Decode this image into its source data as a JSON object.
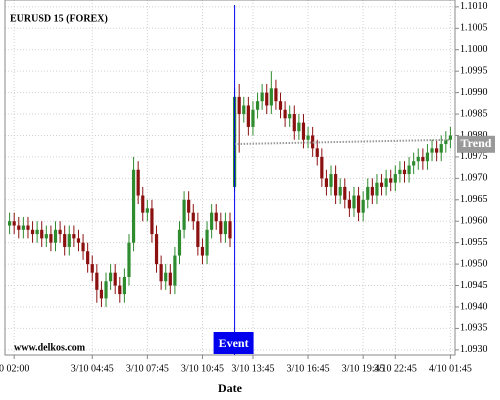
{
  "chart_data": {
    "type": "candlestick",
    "title": "EURUSD 15 (FOREX)",
    "watermark": "www.delkos.com",
    "x_label": "Date",
    "up_color": "#2e8b2e",
    "down_color": "#8b1010",
    "grid": true,
    "xlim": [
      -1,
      97
    ],
    "xticks": [
      {
        "value": 1,
        "label": "0 02:00"
      },
      {
        "value": 18,
        "label": "3/10 04:45"
      },
      {
        "value": 30,
        "label": "3/10 07:45"
      },
      {
        "value": 42,
        "label": "3/10 10:45"
      },
      {
        "value": 53,
        "label": "3/10 13:45"
      },
      {
        "value": 65,
        "label": "3/10 16:45"
      },
      {
        "value": 77,
        "label": "3/10 19:45"
      },
      {
        "value": 84,
        "label": "3/10 22:45"
      },
      {
        "value": 96,
        "label": "4/10 01:45"
      }
    ],
    "ylim": [
      1.09288,
      1.10116
    ],
    "yticks": [
      {
        "value": 1.093,
        "label": "1.0930"
      },
      {
        "value": 1.0935,
        "label": "1.0935"
      },
      {
        "value": 1.094,
        "label": "1.0940"
      },
      {
        "value": 1.0945,
        "label": "1.0945"
      },
      {
        "value": 1.095,
        "label": "1.0950"
      },
      {
        "value": 1.0955,
        "label": "1.0955"
      },
      {
        "value": 1.096,
        "label": "1.0960"
      },
      {
        "value": 1.0965,
        "label": "1.0965"
      },
      {
        "value": 1.097,
        "label": "1.0970"
      },
      {
        "value": 1.0975,
        "label": "1.0975"
      },
      {
        "value": 1.098,
        "label": "1.0980"
      },
      {
        "value": 1.0985,
        "label": "1.0985"
      },
      {
        "value": 1.099,
        "label": "1.0990"
      },
      {
        "value": 1.0995,
        "label": "1.0995"
      },
      {
        "value": 1.1,
        "label": "1.1000"
      },
      {
        "value": 1.1005,
        "label": "1.1005"
      },
      {
        "value": 1.101,
        "label": "1.1010"
      }
    ],
    "open": [
      1.0959,
      1.096,
      1.0959,
      1.0958,
      1.0959,
      1.0958,
      1.0957,
      1.0958,
      1.0956,
      1.0957,
      1.0955,
      1.0958,
      1.0957,
      1.0954,
      1.0957,
      1.0956,
      1.0955,
      1.0953,
      1.095,
      1.0948,
      1.0944,
      1.0942,
      1.0946,
      1.0948,
      1.0945,
      1.0943,
      1.0947,
      1.0955,
      1.0972,
      1.0966,
      1.0962,
      1.0963,
      1.0957,
      1.095,
      1.0946,
      1.0948,
      1.0945,
      1.0952,
      1.0958,
      1.0965,
      1.0962,
      1.096,
      1.0954,
      1.0952,
      1.0958,
      1.0962,
      1.096,
      1.0957,
      1.096,
      1.0968,
      1.0989,
      1.0985,
      1.0987,
      1.0982,
      1.0986,
      1.0988,
      1.099,
      1.0987,
      1.0991,
      1.0988,
      1.0986,
      1.0984,
      1.0985,
      1.0981,
      1.0983,
      1.0979,
      1.098,
      1.0977,
      1.0975,
      1.097,
      1.0968,
      1.0971,
      1.0966,
      1.0968,
      1.0965,
      1.0963,
      1.0966,
      1.0962,
      1.0965,
      1.0968,
      1.0966,
      1.0969,
      1.0968,
      1.097,
      1.0969,
      1.0971,
      1.0972,
      1.0971,
      1.0973,
      1.0974,
      1.0975,
      1.0974,
      1.0976,
      1.0977,
      1.0976,
      1.0978,
      1.0979
    ],
    "high": [
      1.0962,
      1.0962,
      1.0961,
      1.0961,
      1.0961,
      1.096,
      1.096,
      1.096,
      1.0959,
      1.0959,
      1.096,
      1.096,
      1.0959,
      1.0959,
      1.0959,
      1.0958,
      1.0957,
      1.0955,
      1.0952,
      1.095,
      1.0946,
      1.0948,
      1.095,
      1.095,
      1.0947,
      1.0949,
      1.0957,
      1.0975,
      1.0974,
      1.0968,
      1.0965,
      1.0965,
      1.0959,
      1.0952,
      1.095,
      1.095,
      1.0954,
      1.096,
      1.0967,
      1.0967,
      1.0964,
      1.0962,
      1.0956,
      1.096,
      1.0964,
      1.0964,
      1.0962,
      1.0962,
      1.0962,
      1.0991,
      1.0992,
      1.0989,
      1.0989,
      1.0988,
      1.099,
      1.0992,
      1.0992,
      1.0995,
      1.0993,
      1.099,
      1.0988,
      1.0987,
      1.0987,
      1.0985,
      1.0985,
      1.0982,
      1.0982,
      1.0979,
      1.0977,
      1.0972,
      1.0973,
      1.0973,
      1.097,
      1.097,
      1.0967,
      1.0968,
      1.0968,
      1.0967,
      1.097,
      1.097,
      1.0971,
      1.0971,
      1.0972,
      1.0972,
      1.0973,
      1.0974,
      1.0974,
      1.0975,
      1.0976,
      1.0977,
      1.0977,
      1.0978,
      1.0979,
      1.0979,
      1.098,
      1.0981,
      1.0982
    ],
    "low": [
      1.0957,
      1.0957,
      1.0956,
      1.0956,
      1.0956,
      1.0955,
      1.0955,
      1.0954,
      1.0954,
      1.0953,
      1.0953,
      1.0955,
      1.0952,
      1.0952,
      1.0954,
      1.0953,
      1.0951,
      1.0948,
      1.0946,
      1.0941,
      1.094,
      1.094,
      1.0944,
      1.0943,
      1.0941,
      1.0941,
      1.0945,
      1.0953,
      1.0964,
      1.096,
      1.096,
      1.0955,
      1.0948,
      1.0944,
      1.0944,
      1.0943,
      1.0943,
      1.095,
      1.0956,
      1.096,
      1.0958,
      1.0952,
      1.095,
      1.095,
      1.0956,
      1.0958,
      1.0955,
      1.0955,
      1.0954,
      1.0967,
      1.0976,
      1.0983,
      1.098,
      1.098,
      1.0984,
      1.0986,
      1.0985,
      1.0985,
      1.0986,
      1.0984,
      1.0982,
      1.0982,
      1.0979,
      1.0979,
      1.0977,
      1.0977,
      1.0975,
      1.0973,
      1.0968,
      1.0966,
      1.0966,
      1.0964,
      1.0964,
      1.0963,
      1.0961,
      1.0961,
      1.096,
      1.096,
      1.0963,
      1.0964,
      1.0964,
      1.0966,
      1.0966,
      1.0967,
      1.0967,
      1.0969,
      1.0969,
      1.0969,
      1.0971,
      1.0972,
      1.0972,
      1.0972,
      1.0974,
      1.0974,
      1.0974,
      1.0976,
      1.0977
    ],
    "close": [
      1.096,
      1.0959,
      1.0958,
      1.0959,
      1.0958,
      1.0957,
      1.0958,
      1.0956,
      1.0957,
      1.0955,
      1.0958,
      1.0957,
      1.0954,
      1.0957,
      1.0956,
      1.0955,
      1.0953,
      1.095,
      1.0948,
      1.0944,
      1.0942,
      1.0946,
      1.0948,
      1.0945,
      1.0943,
      1.0947,
      1.0955,
      1.0972,
      1.0966,
      1.0962,
      1.0963,
      1.0957,
      1.095,
      1.0946,
      1.0948,
      1.0945,
      1.0952,
      1.0958,
      1.0965,
      1.0962,
      1.096,
      1.0954,
      1.0952,
      1.0958,
      1.0962,
      1.096,
      1.0957,
      1.096,
      1.0956,
      1.0989,
      1.0985,
      1.0987,
      1.0982,
      1.0986,
      1.0988,
      1.099,
      1.0987,
      1.0991,
      1.0988,
      1.0986,
      1.0984,
      1.0985,
      1.0981,
      1.0983,
      1.0979,
      1.098,
      1.0977,
      1.0975,
      1.097,
      1.0968,
      1.0971,
      1.0966,
      1.0968,
      1.0965,
      1.0963,
      1.0966,
      1.0962,
      1.0965,
      1.0968,
      1.0966,
      1.0969,
      1.0968,
      1.097,
      1.0969,
      1.0971,
      1.0972,
      1.0971,
      1.0973,
      1.0974,
      1.0975,
      1.0974,
      1.0976,
      1.0977,
      1.0976,
      1.0978,
      1.0979,
      1.098
    ],
    "event": {
      "label": "Event",
      "x": 49,
      "color": "#0000ee"
    },
    "trend": {
      "label": "Trend",
      "x": [
        49,
        96
      ],
      "values": [
        1.0978,
        1.0979
      ],
      "color": "#999999"
    }
  }
}
